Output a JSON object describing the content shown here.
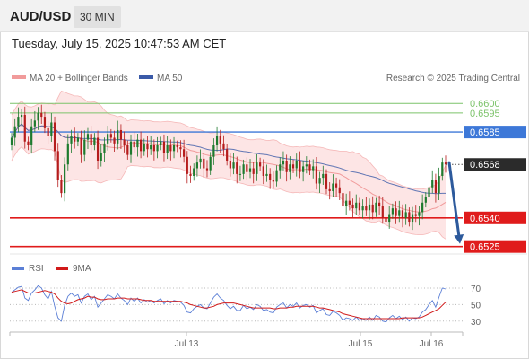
{
  "header": {
    "symbol": "AUD/USD",
    "timeframe": "30 MIN"
  },
  "datetime": "Tuesday, July 15, 2025 10:47:53 AM CET",
  "colors": {
    "candle_up": "#1e7a2e",
    "candle_down": "#b51c1c",
    "bollinger_fill": "#fde0e0",
    "ma20": "#f19b9b",
    "ma50": "#3a5aa8",
    "resistance": "#3d78d8",
    "support": "#e01b1b",
    "target": "#7cc36a",
    "arrow": "#2d5a9c",
    "rsi": "#5b7fd6",
    "rsi_ma": "#d11a1a"
  },
  "chart_data": [
    {
      "type": "candlestick",
      "legend": [
        "MA 20 + Bollinger Bands",
        "MA 50"
      ],
      "watermark": "Research © 2025 Trading Central",
      "x_ticks": [
        "Jul 13",
        "Jul 15",
        "Jul 16"
      ],
      "ylim": [
        0.65225,
        0.66095
      ],
      "levels": [
        {
          "value": 0.66,
          "label": "0.6600",
          "kind": "target"
        },
        {
          "value": 0.6595,
          "label": "0.6595",
          "kind": "target"
        },
        {
          "value": 0.6585,
          "label": "0.6585",
          "kind": "resistance"
        },
        {
          "value": 0.6568,
          "label": "0.6568",
          "kind": "current"
        },
        {
          "value": 0.654,
          "label": "0.6540",
          "kind": "support"
        },
        {
          "value": 0.6525,
          "label": "0.6525",
          "kind": "support"
        }
      ],
      "forecast_arrow": {
        "from_value": 0.6569,
        "to_value": 0.6525,
        "direction": "down"
      },
      "close": [
        0.6582,
        0.6588,
        0.6593,
        0.6594,
        0.658,
        0.6578,
        0.6588,
        0.6591,
        0.6595,
        0.6593,
        0.6587,
        0.6583,
        0.659,
        0.6575,
        0.656,
        0.6553,
        0.6568,
        0.6579,
        0.6583,
        0.658,
        0.6582,
        0.6573,
        0.6581,
        0.6584,
        0.6578,
        0.6582,
        0.657,
        0.6574,
        0.6579,
        0.6584,
        0.6582,
        0.6579,
        0.6586,
        0.6581,
        0.6578,
        0.6573,
        0.658,
        0.6577,
        0.6581,
        0.6575,
        0.6579,
        0.6576,
        0.6578,
        0.6575,
        0.6578,
        0.658,
        0.6574,
        0.6578,
        0.6575,
        0.6578,
        0.6577,
        0.6576,
        0.6572,
        0.6563,
        0.6562,
        0.6566,
        0.6569,
        0.6571,
        0.6566,
        0.6565,
        0.6572,
        0.6578,
        0.6583,
        0.6579,
        0.6576,
        0.657,
        0.6566,
        0.6569,
        0.6563,
        0.6563,
        0.6568,
        0.6564,
        0.6566,
        0.6563,
        0.6569,
        0.6567,
        0.6562,
        0.6563,
        0.656,
        0.6559,
        0.6565,
        0.6568,
        0.657,
        0.6564,
        0.6568,
        0.6566,
        0.657,
        0.6564,
        0.6567,
        0.6568,
        0.6565,
        0.6567,
        0.6558,
        0.6561,
        0.6563,
        0.6555,
        0.6554,
        0.6558,
        0.6556,
        0.6553,
        0.6546,
        0.6549,
        0.6547,
        0.6545,
        0.6548,
        0.6544,
        0.6546,
        0.6544,
        0.6547,
        0.6543,
        0.6548,
        0.6546,
        0.654,
        0.6538,
        0.6542,
        0.6545,
        0.6541,
        0.6544,
        0.654,
        0.6543,
        0.6538,
        0.6542,
        0.6541,
        0.6543,
        0.6548,
        0.6551,
        0.6556,
        0.656,
        0.6553,
        0.6562,
        0.6569,
        0.6568
      ]
    },
    {
      "type": "line",
      "title": "RSI",
      "series": [
        {
          "name": "RSI"
        },
        {
          "name": "9MA"
        }
      ],
      "y_ticks": [
        70,
        50,
        30
      ],
      "ylim": [
        20,
        82
      ],
      "rsi": [
        65,
        68,
        71,
        72,
        58,
        55,
        64,
        68,
        73,
        70,
        62,
        57,
        66,
        48,
        34,
        30,
        49,
        60,
        64,
        60,
        62,
        52,
        60,
        63,
        56,
        60,
        47,
        52,
        57,
        62,
        60,
        57,
        63,
        58,
        55,
        50,
        58,
        54,
        58,
        52,
        56,
        53,
        55,
        52,
        55,
        57,
        51,
        55,
        52,
        55,
        54,
        53,
        49,
        41,
        40,
        45,
        48,
        50,
        46,
        45,
        52,
        59,
        63,
        58,
        55,
        49,
        45,
        48,
        43,
        43,
        49,
        45,
        47,
        44,
        50,
        48,
        43,
        44,
        41,
        40,
        47,
        50,
        52,
        46,
        50,
        48,
        52,
        46,
        49,
        50,
        47,
        49,
        40,
        43,
        45,
        38,
        37,
        42,
        40,
        37,
        31,
        34,
        33,
        31,
        35,
        31,
        33,
        31,
        35,
        31,
        37,
        35,
        30,
        29,
        34,
        37,
        33,
        36,
        32,
        35,
        30,
        34,
        33,
        35,
        41,
        44,
        50,
        55,
        47,
        59,
        70,
        69
      ],
      "rsi_ma": [
        65,
        66,
        67,
        68,
        66,
        64,
        64,
        64,
        65,
        66,
        67,
        66,
        65,
        63,
        58,
        54,
        52,
        51,
        52,
        54,
        56,
        57,
        58,
        60,
        59,
        59,
        57,
        56,
        56,
        57,
        57,
        57,
        58,
        58,
        58,
        57,
        57,
        57,
        57,
        56,
        55,
        55,
        55,
        54,
        54,
        54,
        54,
        54,
        54,
        54,
        54,
        54,
        53,
        52,
        50,
        49,
        48,
        47,
        46,
        46,
        47,
        48,
        50,
        51,
        52,
        52,
        52,
        52,
        51,
        50,
        49,
        48,
        47,
        46,
        46,
        46,
        46,
        46,
        46,
        45,
        45,
        46,
        46,
        46,
        47,
        47,
        48,
        48,
        48,
        48,
        48,
        48,
        47,
        46,
        46,
        45,
        44,
        43,
        42,
        41,
        39,
        38,
        37,
        36,
        35,
        34,
        33,
        33,
        33,
        33,
        33,
        33,
        33,
        33,
        33,
        33,
        33,
        33,
        34,
        34,
        34,
        34,
        34,
        34,
        35,
        37,
        39,
        41,
        43,
        45,
        49,
        53
      ]
    }
  ]
}
